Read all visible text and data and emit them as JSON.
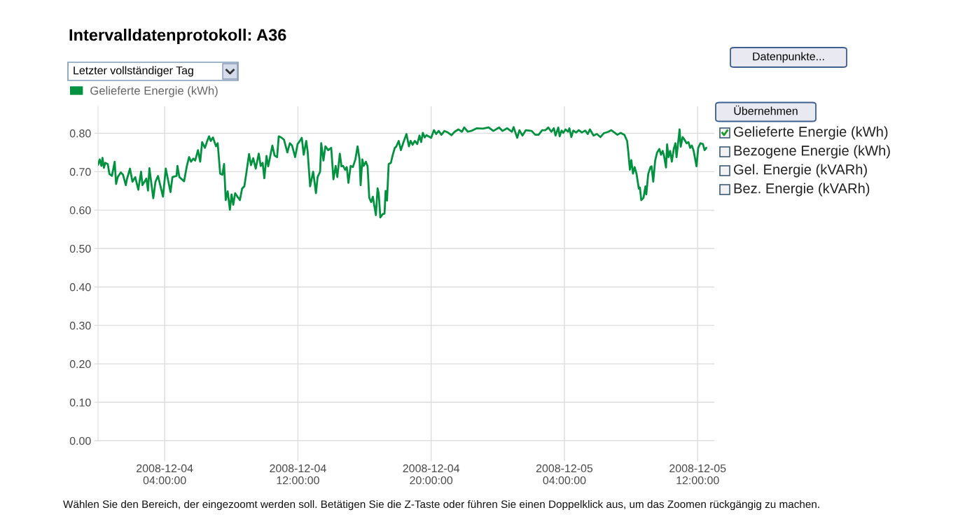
{
  "chart_data": {
    "type": "line",
    "title": "Intervalldatenprotokoll: A36",
    "annotations": [
      "Letzter vollständiger Tag",
      "Datenpunkte...",
      "Übernehmen",
      "Gelieferte Energie (kWh)",
      "Bezogene Energie (kWh)",
      "Gel. Energie (kVARh)",
      "Bez. Energie (kVARh)",
      "Wählen Sie den Bereich, der eingezoomt werden soll. Betätigen Sie die Z-Taste oder führen Sie einen Doppelklick aus, um das Zoomen rückgängig zu machen."
    ],
    "x": [
      "2008-12-04T00:00",
      "2008-12-04T00:06",
      "2008-12-04T00:12",
      "2008-12-04T00:16",
      "2008-12-04T00:21",
      "2008-12-04T00:26",
      "2008-12-04T00:35",
      "2008-12-04T00:41",
      "2008-12-04T00:50",
      "2008-12-04T01:00",
      "2008-12-04T01:05",
      "2008-12-04T01:11",
      "2008-12-04T01:22",
      "2008-12-04T01:30",
      "2008-12-04T01:40",
      "2008-12-04T01:44",
      "2008-12-04T01:55",
      "2008-12-04T02:04",
      "2008-12-04T02:14",
      "2008-12-04T02:25",
      "2008-12-04T02:35",
      "2008-12-04T02:40",
      "2008-12-04T02:54",
      "2008-12-04T03:00",
      "2008-12-04T03:05",
      "2008-12-04T03:19",
      "2008-12-04T03:27",
      "2008-12-04T03:36",
      "2008-12-04T03:54",
      "2008-12-04T04:04",
      "2008-12-04T04:21",
      "2008-12-04T04:28",
      "2008-12-04T04:43",
      "2008-12-04T04:46",
      "2008-12-04T04:53",
      "2008-12-04T05:10",
      "2008-12-04T05:20",
      "2008-12-04T05:28",
      "2008-12-04T05:35",
      "2008-12-04T05:43",
      "2008-12-04T05:50",
      "2008-12-04T06:00",
      "2008-12-04T06:08",
      "2008-12-04T06:15",
      "2008-12-04T06:25",
      "2008-12-04T06:32",
      "2008-12-04T06:40",
      "2008-12-04T06:46",
      "2008-12-04T06:54",
      "2008-12-04T07:05",
      "2008-12-04T07:11",
      "2008-12-04T07:20",
      "2008-12-04T07:28",
      "2008-12-04T07:34",
      "2008-12-04T07:40",
      "2008-12-04T07:47",
      "2008-12-04T07:55",
      "2008-12-04T08:01",
      "2008-12-04T08:07",
      "2008-12-04T08:14",
      "2008-12-04T08:22",
      "2008-12-04T08:31",
      "2008-12-04T08:39",
      "2008-12-04T08:47",
      "2008-12-04T08:54",
      "2008-12-04T09:04",
      "2008-12-04T09:11",
      "2008-12-04T09:19",
      "2008-12-04T09:28",
      "2008-12-04T09:39",
      "2008-12-04T09:46",
      "2008-12-04T09:53",
      "2008-12-04T09:59",
      "2008-12-04T10:07",
      "2008-12-04T10:13",
      "2008-12-04T10:28",
      "2008-12-04T10:36",
      "2008-12-04T10:45",
      "2008-12-04T10:51",
      "2008-12-04T11:00",
      "2008-12-04T11:10",
      "2008-12-04T11:22",
      "2008-12-04T11:31",
      "2008-12-04T11:39",
      "2008-12-04T11:50",
      "2008-12-04T11:59",
      "2008-12-04T12:07",
      "2008-12-04T12:14",
      "2008-12-04T12:21",
      "2008-12-04T12:30",
      "2008-12-04T12:35",
      "2008-12-04T12:44",
      "2008-12-04T12:55",
      "2008-12-04T13:05",
      "2008-12-04T13:11",
      "2008-12-04T13:20",
      "2008-12-04T13:24",
      "2008-12-04T13:32",
      "2008-12-04T13:39",
      "2008-12-04T13:49",
      "2008-12-04T14:00",
      "2008-12-04T14:08",
      "2008-12-04T14:16",
      "2008-12-04T14:22",
      "2008-12-04T14:31",
      "2008-12-04T14:37",
      "2008-12-04T14:43",
      "2008-12-04T14:50",
      "2008-12-04T14:56",
      "2008-12-04T15:02",
      "2008-12-04T15:10",
      "2008-12-04T15:18",
      "2008-12-04T15:27",
      "2008-12-04T15:35",
      "2008-12-04T15:42",
      "2008-12-04T15:46",
      "2008-12-04T15:52",
      "2008-12-04T15:57",
      "2008-12-04T16:05",
      "2008-12-04T16:11",
      "2008-12-04T16:17",
      "2008-12-04T16:24",
      "2008-12-04T16:30",
      "2008-12-04T16:34",
      "2008-12-04T16:41",
      "2008-12-04T16:47",
      "2008-12-04T16:51",
      "2008-12-04T16:57",
      "2008-12-04T17:06",
      "2008-12-04T17:12",
      "2008-12-04T17:16",
      "2008-12-04T17:21",
      "2008-12-04T17:27",
      "2008-12-04T17:35",
      "2008-12-04T17:41",
      "2008-12-04T17:49",
      "2008-12-04T17:54",
      "2008-12-04T18:03",
      "2008-12-04T18:11",
      "2008-12-04T18:19",
      "2008-12-04T18:31",
      "2008-12-04T18:40",
      "2008-12-04T18:46",
      "2008-12-04T18:53",
      "2008-12-04T19:01",
      "2008-12-04T19:10",
      "2008-12-04T19:18",
      "2008-12-04T19:24",
      "2008-12-04T19:30",
      "2008-12-04T19:37",
      "2008-12-04T19:43",
      "2008-12-04T20:00",
      "2008-12-04T20:10",
      "2008-12-04T20:18",
      "2008-12-04T20:27",
      "2008-12-04T20:37",
      "2008-12-04T20:48",
      "2008-12-04T21:00",
      "2008-12-04T21:13",
      "2008-12-04T21:25",
      "2008-12-04T21:38",
      "2008-12-04T21:51",
      "2008-12-04T21:59",
      "2008-12-04T22:12",
      "2008-12-04T22:24",
      "2008-12-04T22:45",
      "2008-12-04T23:06",
      "2008-12-04T23:27",
      "2008-12-04T23:44",
      "2008-12-05T00:05",
      "2008-12-05T00:17",
      "2008-12-05T00:34",
      "2008-12-05T00:51",
      "2008-12-05T00:57",
      "2008-12-05T01:10",
      "2008-12-05T01:18",
      "2008-12-05T01:29",
      "2008-12-05T01:41",
      "2008-12-05T02:02",
      "2008-12-05T02:15",
      "2008-12-05T02:27",
      "2008-12-05T02:40",
      "2008-12-05T02:52",
      "2008-12-05T03:02",
      "2008-12-05T03:13",
      "2008-12-05T03:22",
      "2008-12-05T03:28",
      "2008-12-05T03:38",
      "2008-12-05T03:43",
      "2008-12-05T03:50",
      "2008-12-05T03:56",
      "2008-12-05T04:04",
      "2008-12-05T04:13",
      "2008-12-05T04:18",
      "2008-12-05T04:25",
      "2008-12-05T04:32",
      "2008-12-05T04:42",
      "2008-12-05T04:52",
      "2008-12-05T05:03",
      "2008-12-05T05:15",
      "2008-12-05T05:24",
      "2008-12-05T05:32",
      "2008-12-05T05:45",
      "2008-12-05T05:57",
      "2008-12-05T06:10",
      "2008-12-05T06:22",
      "2008-12-05T06:39",
      "2008-12-05T06:49",
      "2008-12-05T07:00",
      "2008-12-05T07:11",
      "2008-12-05T07:23",
      "2008-12-05T07:36",
      "2008-12-05T07:46",
      "2008-12-05T07:50",
      "2008-12-05T07:56",
      "2008-12-05T08:01",
      "2008-12-05T08:07",
      "2008-12-05T08:13",
      "2008-12-05T08:20",
      "2008-12-05T08:28",
      "2008-12-05T08:32",
      "2008-12-05T08:37",
      "2008-12-05T08:45",
      "2008-12-05T08:52",
      "2008-12-05T08:55",
      "2008-12-05T09:02",
      "2008-12-05T09:10",
      "2008-12-05T09:14",
      "2008-12-05T09:20",
      "2008-12-05T09:27",
      "2008-12-05T09:34",
      "2008-12-05T09:42",
      "2008-12-05T09:48",
      "2008-12-05T09:54",
      "2008-12-05T09:59",
      "2008-12-05T10:06",
      "2008-12-05T10:10",
      "2008-12-05T10:15",
      "2008-12-05T10:21",
      "2008-12-05T10:27",
      "2008-12-05T10:34",
      "2008-12-05T10:40",
      "2008-12-05T10:44",
      "2008-12-05T10:55",
      "2008-12-05T10:59",
      "2008-12-05T11:06",
      "2008-12-05T11:12",
      "2008-12-05T11:20",
      "2008-12-05T11:27",
      "2008-12-05T11:33",
      "2008-12-05T11:39",
      "2008-12-05T11:45",
      "2008-12-05T11:49",
      "2008-12-05T11:56",
      "2008-12-05T12:02",
      "2008-12-05T12:10",
      "2008-12-05T12:19",
      "2008-12-05T12:25",
      "2008-12-05T12:31"
    ],
    "series": [
      {
        "name": "Gelieferte Energie (kWh)",
        "color": "#00923f",
        "values": [
          0.718,
          0.732,
          0.715,
          0.736,
          0.71,
          0.723,
          0.72,
          0.694,
          0.689,
          0.726,
          0.668,
          0.686,
          0.698,
          0.692,
          0.665,
          0.68,
          0.708,
          0.674,
          0.686,
          0.653,
          0.7,
          0.665,
          0.682,
          0.651,
          0.709,
          0.631,
          0.674,
          0.689,
          0.635,
          0.708,
          0.647,
          0.686,
          0.689,
          0.715,
          0.686,
          0.675,
          0.715,
          0.738,
          0.726,
          0.734,
          0.729,
          0.756,
          0.726,
          0.777,
          0.762,
          0.777,
          0.792,
          0.78,
          0.789,
          0.766,
          0.774,
          0.695,
          0.692,
          0.72,
          0.626,
          0.649,
          0.601,
          0.641,
          0.614,
          0.644,
          0.635,
          0.626,
          0.656,
          0.662,
          0.695,
          0.746,
          0.717,
          0.735,
          0.708,
          0.747,
          0.715,
          0.723,
          0.683,
          0.741,
          0.714,
          0.768,
          0.742,
          0.738,
          0.792,
          0.789,
          0.783,
          0.75,
          0.774,
          0.768,
          0.738,
          0.772,
          0.78,
          0.788,
          0.744,
          0.78,
          0.753,
          0.662,
          0.7,
          0.644,
          0.686,
          0.7,
          0.774,
          0.729,
          0.766,
          0.756,
          0.762,
          0.68,
          0.715,
          0.686,
          0.747,
          0.714,
          0.715,
          0.705,
          0.712,
          0.671,
          0.715,
          0.712,
          0.732,
          0.766,
          0.732,
          0.665,
          0.732,
          0.715,
          0.726,
          0.714,
          0.632,
          0.621,
          0.635,
          0.617,
          0.587,
          0.657,
          0.644,
          0.581,
          0.59,
          0.591,
          0.65,
          0.625,
          0.72,
          0.723,
          0.742,
          0.762,
          0.765,
          0.78,
          0.756,
          0.774,
          0.798,
          0.766,
          0.78,
          0.77,
          0.78,
          0.772,
          0.794,
          0.777,
          0.801,
          0.789,
          0.795,
          0.788,
          0.808,
          0.798,
          0.806,
          0.796,
          0.806,
          0.802,
          0.795,
          0.804,
          0.81,
          0.804,
          0.815,
          0.804,
          0.806,
          0.813,
          0.812,
          0.815,
          0.806,
          0.815,
          0.806,
          0.813,
          0.804,
          0.816,
          0.788,
          0.808,
          0.794,
          0.808,
          0.806,
          0.796,
          0.796,
          0.808,
          0.808,
          0.815,
          0.804,
          0.813,
          0.794,
          0.815,
          0.792,
          0.807,
          0.801,
          0.81,
          0.804,
          0.813,
          0.79,
          0.807,
          0.802,
          0.808,
          0.802,
          0.807,
          0.798,
          0.81,
          0.794,
          0.798,
          0.79,
          0.8,
          0.804,
          0.808,
          0.802,
          0.796,
          0.801,
          0.796,
          0.78,
          0.753,
          0.705,
          0.73,
          0.695,
          0.712,
          0.694,
          0.656,
          0.659,
          0.626,
          0.632,
          0.662,
          0.641,
          0.694,
          0.712,
          0.714,
          0.674,
          0.729,
          0.75,
          0.759,
          0.744,
          0.754,
          0.741,
          0.711,
          0.771,
          0.738,
          0.754,
          0.726,
          0.759,
          0.774,
          0.738,
          0.81,
          0.765,
          0.79,
          0.784,
          0.774,
          0.777,
          0.762,
          0.768,
          0.756,
          0.741,
          0.714,
          0.762,
          0.774,
          0.772,
          0.756,
          0.762
        ]
      }
    ],
    "xlim": [
      "2008-12-04T00:00",
      "2008-12-05T13:00"
    ],
    "xticks": [
      {
        "value": "2008-12-04T04:00",
        "label": "2008-12-04\n04:00:00"
      },
      {
        "value": "2008-12-04T12:00",
        "label": "2008-12-04\n12:00:00"
      },
      {
        "value": "2008-12-04T20:00",
        "label": "2008-12-04\n20:00:00"
      },
      {
        "value": "2008-12-05T04:00",
        "label": "2008-12-05\n04:00:00"
      },
      {
        "value": "2008-12-05T12:00",
        "label": "2008-12-05\n12:00:00"
      }
    ],
    "ylim": [
      0,
      0.87
    ],
    "yticks": [
      {
        "value": 0,
        "label": "0.00"
      },
      {
        "value": 0.1,
        "label": "0.10"
      },
      {
        "value": 0.2,
        "label": "0.20"
      },
      {
        "value": 0.3,
        "label": "0.30"
      },
      {
        "value": 0.4,
        "label": "0.40"
      },
      {
        "value": 0.5,
        "label": "0.50"
      },
      {
        "value": 0.6,
        "label": "0.60"
      },
      {
        "value": 0.7,
        "label": "0.70"
      },
      {
        "value": 0.8,
        "label": "0.80"
      }
    ],
    "grid": true,
    "legend": "top left"
  }
}
